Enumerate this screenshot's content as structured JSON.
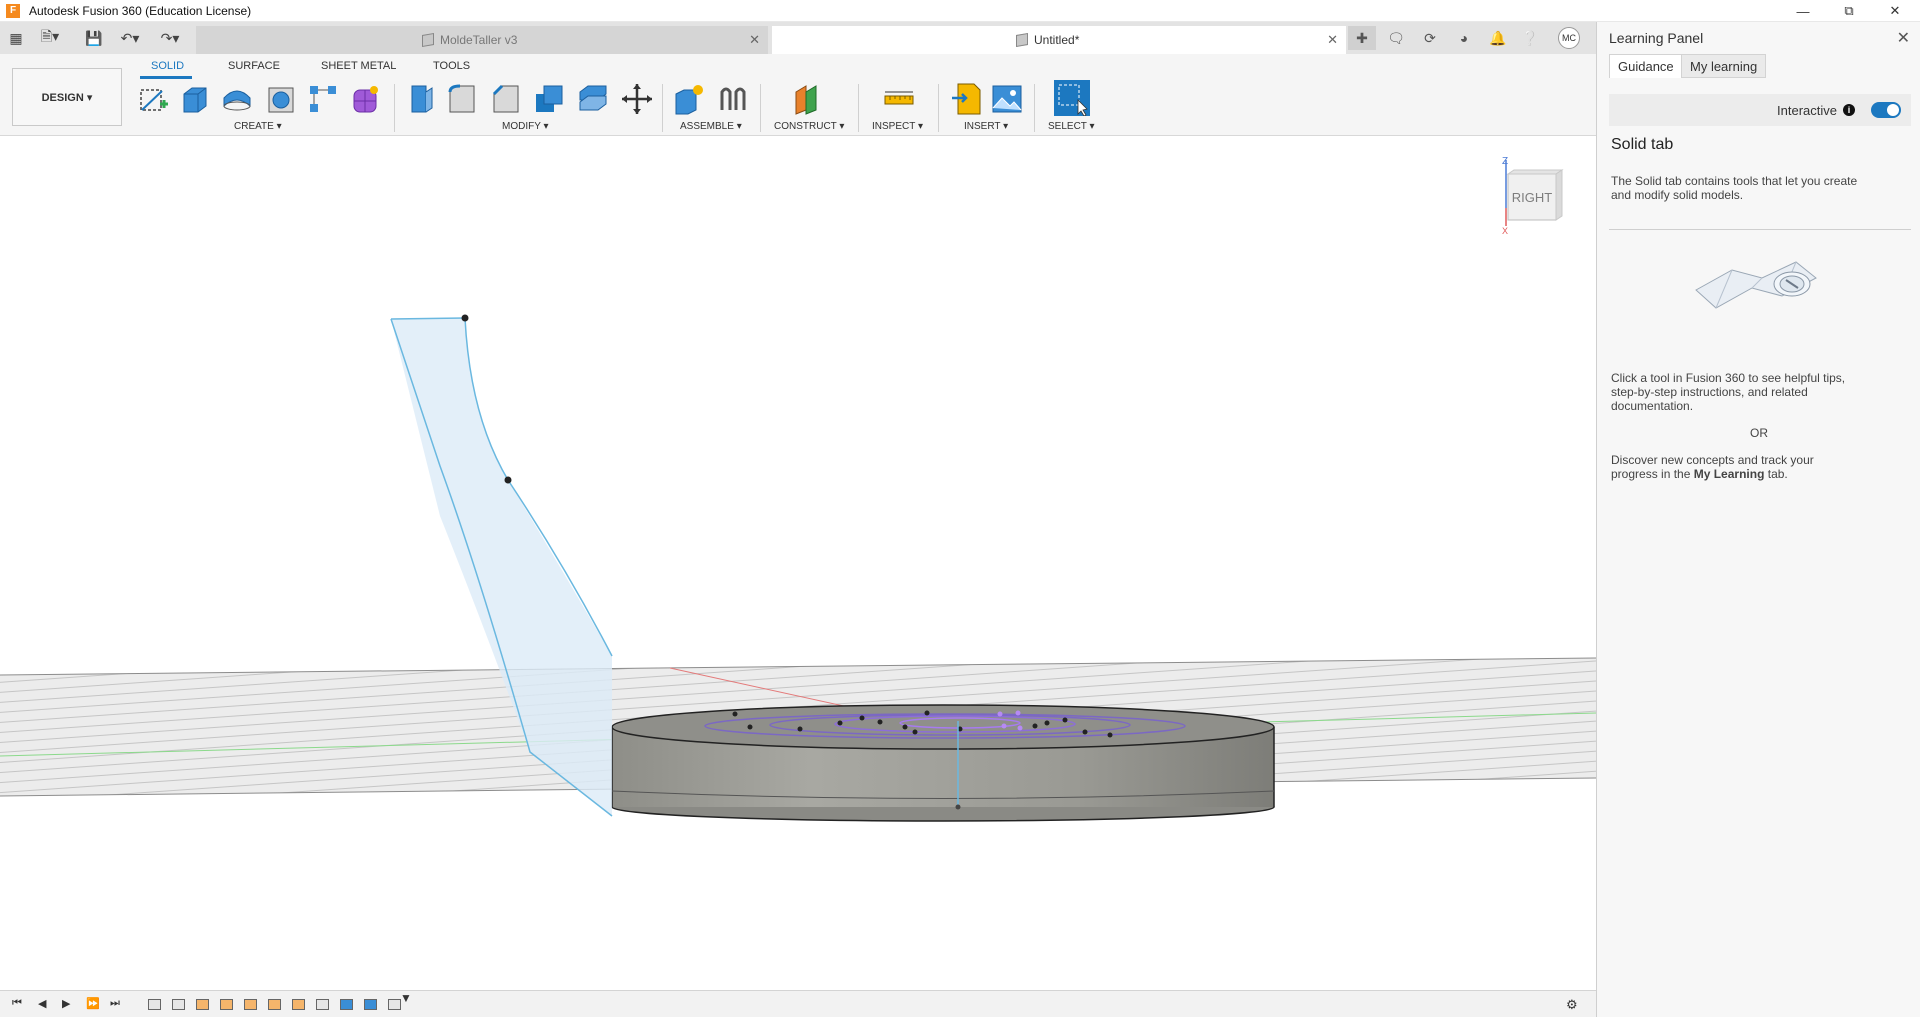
{
  "window": {
    "title": "Autodesk Fusion 360 (Education License)",
    "logo_letter": "F",
    "controls": [
      "minimize-icon",
      "maximize-icon",
      "close-icon"
    ]
  },
  "tabs": [
    {
      "label": "MoldeTaller v3",
      "active": false
    },
    {
      "label": "Untitled*",
      "active": true
    }
  ],
  "user_initials": "MC",
  "ribbon": {
    "workspace": "DESIGN ▾",
    "tabs": [
      "SOLID",
      "SURFACE",
      "SHEET METAL",
      "TOOLS"
    ],
    "active_tab": "SOLID",
    "groups": {
      "create": "CREATE ▾",
      "modify": "MODIFY ▾",
      "assemble": "ASSEMBLE ▾",
      "construct": "CONSTRUCT ▾",
      "inspect": "INSPECT ▾",
      "insert": "INSERT ▾",
      "select": "SELECT ▾"
    }
  },
  "viewcube": {
    "face": "RIGHT",
    "axis_z": "Z",
    "axis_x": "X"
  },
  "learning_panel": {
    "title": "Learning Panel",
    "tabs": [
      "Guidance",
      "My learning"
    ],
    "interactive_label": "Interactive",
    "info_glyph": "i",
    "interactive_on": true,
    "heading": "Solid tab",
    "description_line1": "The Solid tab contains tools that let you create",
    "description_line2": "and modify solid models.",
    "hint_line1": "Click a tool in Fusion 360 to see helpful tips,",
    "hint_line2": "step-by-step instructions, and related",
    "hint_line3": "documentation.",
    "or": "OR",
    "discover_line1": "Discover new concepts and track your",
    "discover_line2_pre": "progress in the ",
    "discover_line2_bold": "My Learning",
    "discover_line2_post": " tab."
  }
}
